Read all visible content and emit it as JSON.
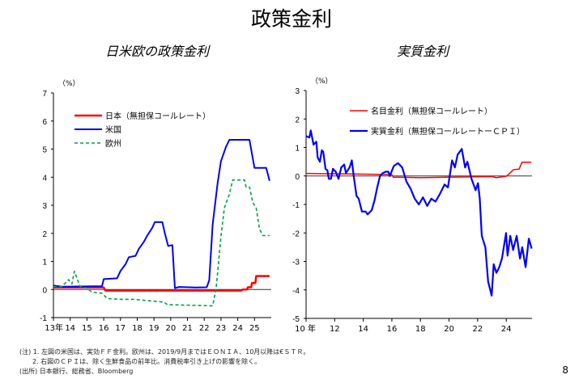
{
  "title": "政策金利",
  "notes": [
    "(注) 1. 左図の米国は、実効ＦＦ金利。欧州は、2019/9月まではＥＯＮＩＡ、10月以降は€ＳＴＲ。",
    "2. 右図のＣＰＩは、除く生鮮食品の前年比。消費税率引き上げの影響を除く。",
    "(出所) 日本銀行、総務省、Bloomberg"
  ],
  "page_number": "8",
  "chart_data": [
    {
      "type": "line",
      "title": "日米欧の政策金利",
      "unit": "（%）",
      "ylim": [
        -1,
        7
      ],
      "yticks": [
        -1,
        0,
        1,
        2,
        3,
        4,
        5,
        6,
        7
      ],
      "xlim": [
        2013,
        2026
      ],
      "xticks": [
        {
          "v": 2013,
          "label": "13年"
        },
        {
          "v": 2014,
          "label": "14"
        },
        {
          "v": 2015,
          "label": "15"
        },
        {
          "v": 2016,
          "label": "16"
        },
        {
          "v": 2017,
          "label": "17"
        },
        {
          "v": 2018,
          "label": "18"
        },
        {
          "v": 2019,
          "label": "19"
        },
        {
          "v": 2020,
          "label": "20"
        },
        {
          "v": 2021,
          "label": "21"
        },
        {
          "v": 2022,
          "label": "22"
        },
        {
          "v": 2023,
          "label": "23"
        },
        {
          "v": 2024,
          "label": "24"
        },
        {
          "v": 2025,
          "label": "25"
        }
      ],
      "legend": "top-left",
      "series": [
        {
          "name": "日本（無担保コールレート）",
          "color": "#ff0000",
          "style": "solid",
          "width": 2.5,
          "points": [
            [
              2013,
              0.07
            ],
            [
              2016.0,
              0.07
            ],
            [
              2016.1,
              -0.04
            ],
            [
              2024.2,
              -0.04
            ],
            [
              2024.3,
              0.0
            ],
            [
              2024.55,
              0.0
            ],
            [
              2024.6,
              0.08
            ],
            [
              2024.8,
              0.08
            ],
            [
              2024.85,
              0.23
            ],
            [
              2025.05,
              0.23
            ],
            [
              2025.1,
              0.48
            ],
            [
              2025.9,
              0.48
            ]
          ]
        },
        {
          "name": "米国",
          "color": "#0000ff",
          "style": "solid",
          "width": 2,
          "points": [
            [
              2013,
              0.14
            ],
            [
              2013.5,
              0.1
            ],
            [
              2015.9,
              0.12
            ],
            [
              2016.0,
              0.37
            ],
            [
              2016.8,
              0.4
            ],
            [
              2017.0,
              0.66
            ],
            [
              2017.3,
              0.9
            ],
            [
              2017.5,
              1.15
            ],
            [
              2017.9,
              1.2
            ],
            [
              2018.1,
              1.45
            ],
            [
              2018.4,
              1.7
            ],
            [
              2018.6,
              1.92
            ],
            [
              2018.9,
              2.2
            ],
            [
              2019.05,
              2.4
            ],
            [
              2019.5,
              2.4
            ],
            [
              2019.65,
              2.0
            ],
            [
              2019.85,
              1.55
            ],
            [
              2020.1,
              1.58
            ],
            [
              2020.25,
              0.05
            ],
            [
              2020.5,
              0.09
            ],
            [
              2021.5,
              0.07
            ],
            [
              2022.15,
              0.08
            ],
            [
              2022.3,
              0.33
            ],
            [
              2022.5,
              2.3
            ],
            [
              2022.8,
              3.8
            ],
            [
              2023.0,
              4.57
            ],
            [
              2023.3,
              5.08
            ],
            [
              2023.5,
              5.33
            ],
            [
              2024.7,
              5.33
            ],
            [
              2024.85,
              4.83
            ],
            [
              2025.0,
              4.33
            ],
            [
              2025.7,
              4.33
            ],
            [
              2025.9,
              3.87
            ]
          ]
        },
        {
          "name": "欧州",
          "color": "#00a040",
          "style": "dashed",
          "width": 1.6,
          "points": [
            [
              2013,
              0.1
            ],
            [
              2013.5,
              0.1
            ],
            [
              2013.9,
              0.35
            ],
            [
              2014.1,
              0.2
            ],
            [
              2014.25,
              0.65
            ],
            [
              2014.4,
              0.4
            ],
            [
              2014.6,
              0.1
            ],
            [
              2015.0,
              0.05
            ],
            [
              2015.3,
              -0.1
            ],
            [
              2015.9,
              -0.13
            ],
            [
              2016.2,
              -0.32
            ],
            [
              2017.0,
              -0.35
            ],
            [
              2017.9,
              -0.35
            ],
            [
              2018.0,
              -0.36
            ],
            [
              2019.6,
              -0.45
            ],
            [
              2019.8,
              -0.54
            ],
            [
              2022.5,
              -0.58
            ],
            [
              2022.7,
              0.0
            ],
            [
              2022.8,
              0.6
            ],
            [
              2023.0,
              1.9
            ],
            [
              2023.2,
              2.9
            ],
            [
              2023.5,
              3.4
            ],
            [
              2023.7,
              3.9
            ],
            [
              2024.4,
              3.9
            ],
            [
              2024.5,
              3.65
            ],
            [
              2024.7,
              3.65
            ],
            [
              2024.9,
              3.1
            ],
            [
              2025.1,
              2.9
            ],
            [
              2025.3,
              2.15
            ],
            [
              2025.5,
              1.92
            ],
            [
              2025.9,
              1.92
            ]
          ]
        }
      ]
    },
    {
      "type": "line",
      "title": "実質金利",
      "unit": "（%）",
      "ylim": [
        -5,
        3
      ],
      "yticks": [
        -5,
        -4,
        -3,
        -2,
        -1,
        0,
        1,
        2,
        3
      ],
      "xlim": [
        2010,
        2025.8
      ],
      "xticks": [
        {
          "v": 2010,
          "label": "10 年"
        },
        {
          "v": 2012,
          "label": "12"
        },
        {
          "v": 2014,
          "label": "14"
        },
        {
          "v": 2016,
          "label": "16"
        },
        {
          "v": 2018,
          "label": "18"
        },
        {
          "v": 2020,
          "label": "20"
        },
        {
          "v": 2022,
          "label": "22"
        },
        {
          "v": 2024,
          "label": "24"
        }
      ],
      "legend": "top-right",
      "series": [
        {
          "name": "名目金利（無担保コールレート）",
          "color": "#ff0000",
          "style": "solid",
          "width": 1.5,
          "points": [
            [
              2010,
              0.09
            ],
            [
              2011,
              0.08
            ],
            [
              2013,
              0.07
            ],
            [
              2016.0,
              0.05
            ],
            [
              2016.1,
              -0.04
            ],
            [
              2018,
              -0.06
            ],
            [
              2020,
              -0.04
            ],
            [
              2023,
              -0.02
            ],
            [
              2023.3,
              -0.06
            ],
            [
              2024.0,
              -0.01
            ],
            [
              2024.2,
              0.07
            ],
            [
              2024.5,
              0.22
            ],
            [
              2024.9,
              0.24
            ],
            [
              2025.1,
              0.48
            ],
            [
              2025.75,
              0.48
            ]
          ]
        },
        {
          "name": "実質金利（無担保コールレートーＣＰＩ）",
          "color": "#0000ff",
          "style": "solid",
          "width": 2.2,
          "points": [
            [
              2010.0,
              1.4
            ],
            [
              2010.23,
              1.35
            ],
            [
              2010.33,
              1.6
            ],
            [
              2010.52,
              1.1
            ],
            [
              2010.72,
              1.2
            ],
            [
              2010.81,
              0.65
            ],
            [
              2010.97,
              0.5
            ],
            [
              2011.1,
              0.9
            ],
            [
              2011.2,
              0.85
            ],
            [
              2011.36,
              0.25
            ],
            [
              2011.49,
              0.2
            ],
            [
              2011.59,
              -0.1
            ],
            [
              2011.74,
              -0.1
            ],
            [
              2011.88,
              0.25
            ],
            [
              2012.07,
              0.15
            ],
            [
              2012.27,
              -0.1
            ],
            [
              2012.46,
              0.3
            ],
            [
              2012.66,
              0.4
            ],
            [
              2012.79,
              0.1
            ],
            [
              2013.04,
              0.3
            ],
            [
              2013.2,
              0.55
            ],
            [
              2013.33,
              0.0
            ],
            [
              2013.53,
              -0.7
            ],
            [
              2013.68,
              -0.8
            ],
            [
              2013.91,
              -1.25
            ],
            [
              2014.17,
              -1.25
            ],
            [
              2014.3,
              -1.35
            ],
            [
              2014.59,
              -1.2
            ],
            [
              2014.79,
              -0.85
            ],
            [
              2014.98,
              -0.4
            ],
            [
              2015.17,
              0.0
            ],
            [
              2015.37,
              0.1
            ],
            [
              2015.56,
              0.15
            ],
            [
              2015.76,
              0.15
            ],
            [
              2015.85,
              0.0
            ],
            [
              2016.14,
              0.35
            ],
            [
              2016.43,
              0.45
            ],
            [
              2016.72,
              0.3
            ],
            [
              2017.02,
              -0.2
            ],
            [
              2017.31,
              -0.45
            ],
            [
              2017.6,
              -0.8
            ],
            [
              2017.89,
              -1.0
            ],
            [
              2018.18,
              -0.75
            ],
            [
              2018.47,
              -1.05
            ],
            [
              2018.76,
              -0.8
            ],
            [
              2019.05,
              -0.9
            ],
            [
              2019.34,
              -0.65
            ],
            [
              2019.69,
              -0.3
            ],
            [
              2019.92,
              -0.4
            ],
            [
              2020.21,
              0.55
            ],
            [
              2020.41,
              0.3
            ],
            [
              2020.6,
              0.75
            ],
            [
              2020.89,
              0.95
            ],
            [
              2021.12,
              0.3
            ],
            [
              2021.28,
              0.5
            ],
            [
              2021.57,
              -0.1
            ],
            [
              2021.86,
              -0.5
            ],
            [
              2022.02,
              -0.25
            ],
            [
              2022.15,
              -0.8
            ],
            [
              2022.29,
              -2.1
            ],
            [
              2022.54,
              -2.5
            ],
            [
              2022.73,
              -3.7
            ],
            [
              2022.98,
              -4.2
            ],
            [
              2023.12,
              -3.1
            ],
            [
              2023.31,
              -3.4
            ],
            [
              2023.51,
              -3.2
            ],
            [
              2023.7,
              -2.9
            ],
            [
              2023.99,
              -2.0
            ],
            [
              2024.09,
              -2.8
            ],
            [
              2024.28,
              -2.1
            ],
            [
              2024.48,
              -2.6
            ],
            [
              2024.73,
              -2.1
            ],
            [
              2024.96,
              -2.9
            ],
            [
              2025.12,
              -2.5
            ],
            [
              2025.35,
              -3.2
            ],
            [
              2025.58,
              -2.2
            ],
            [
              2025.78,
              -2.55
            ]
          ]
        }
      ]
    }
  ]
}
